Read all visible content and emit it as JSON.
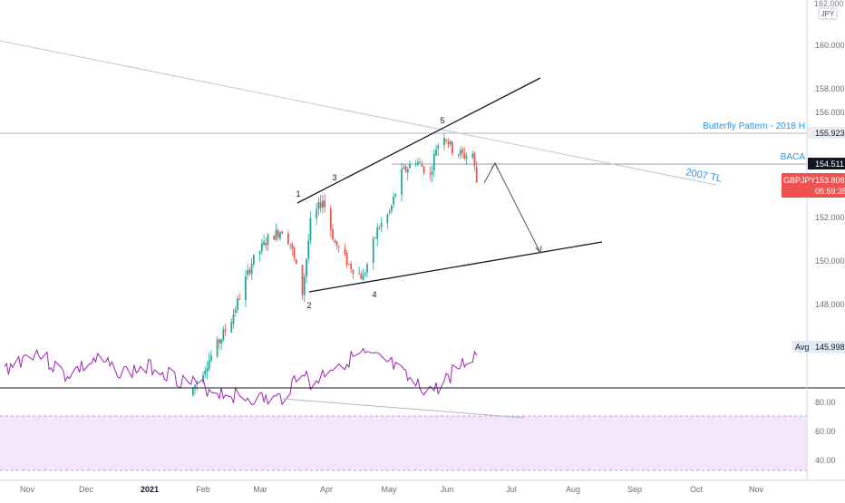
{
  "colors": {
    "bull": "#26a69a",
    "bear": "#ef5350",
    "rsi_line": "#9c27b0",
    "rsi_band": "#f3e5fc",
    "annot_blue": "#2196f3",
    "trend_line": "#b2b5be",
    "last_price_bg": "#ef5350",
    "current_label_bg": "#131722",
    "avg_bg": "#e3e9f7"
  },
  "price_scale": {
    "currency": "JPY",
    "ticks": [
      "160.000",
      "158.000",
      "156.000",
      "152.000",
      "150.000",
      "148.000"
    ],
    "top_partial": "162.000"
  },
  "price_labels": {
    "butterfly_value": "155.923",
    "baca_value": "154.511",
    "symbol": "GBPJPY",
    "last_price": "153.808",
    "countdown": "05:59:35",
    "avg_label": "Avg",
    "avg_value": "145.998"
  },
  "annotations": {
    "butterfly": "Butterfly Pattern - 2018 H",
    "baca": "BACA",
    "tl2007": "2007 TL",
    "waves": [
      "1",
      "2",
      "3",
      "4",
      "5"
    ]
  },
  "rsi_scale": {
    "ticks": [
      "80.00",
      "60.00",
      "40.00"
    ]
  },
  "time_axis": [
    "Nov",
    "Dec",
    "2021",
    "Feb",
    "Mar",
    "Apr",
    "May",
    "Jun",
    "Jul",
    "Aug",
    "Sep",
    "Oct",
    "Nov"
  ],
  "chart_data": [
    {
      "type": "line",
      "symbol": "GBPJPY",
      "currency": "JPY",
      "y_ticks": [
        148,
        150,
        152,
        156,
        158,
        160
      ],
      "ylim": [
        144.2,
        162.1
      ],
      "reference_levels": [
        {
          "label": "Butterfly Pattern - 2018 H",
          "value": 155.923
        },
        {
          "label": "BACA",
          "value": 154.511
        },
        {
          "label": "Avg",
          "value": 145.998
        }
      ],
      "last_price": 153.808,
      "series": [
        {
          "x": [
            "2021-01-27",
            "2021-02-05",
            "2021-02-15",
            "2021-02-25",
            "2021-03-05",
            "2021-03-12",
            "2021-03-16",
            "2021-03-22",
            "2021-03-26",
            "2021-04-01",
            "2021-04-07",
            "2021-04-14",
            "2021-04-21",
            "2021-04-28",
            "2021-05-04",
            "2021-05-10",
            "2021-05-17",
            "2021-05-24",
            "2021-05-27",
            "2021-05-31",
            "2021-06-04",
            "2021-06-10",
            "2021-06-14",
            "2021-06-16"
          ],
          "values": [
            144.3,
            145.8,
            147.5,
            150.1,
            151.2,
            151.6,
            151.0,
            148.7,
            151.9,
            153.0,
            151.0,
            150.0,
            149.4,
            151.6,
            152.4,
            154.2,
            154.8,
            154.1,
            155.4,
            156.0,
            155.3,
            155.0,
            155.1,
            153.8
          ]
        }
      ]
    },
    {
      "type": "line",
      "title": "RSI",
      "y_ticks": [
        40,
        60,
        80
      ],
      "ylim": [
        30,
        86
      ],
      "band": [
        30,
        70
      ],
      "series": [
        {
          "x": [
            "2020-10-26",
            "2020-11-10",
            "2020-11-25",
            "2020-12-10",
            "2020-12-24",
            "2021-01-08",
            "2021-01-22",
            "2021-02-05",
            "2021-02-20",
            "2021-03-05",
            "2021-03-12",
            "2021-03-22",
            "2021-03-26",
            "2021-04-05",
            "2021-04-20",
            "2021-05-04",
            "2021-05-17",
            "2021-05-27",
            "2021-06-04",
            "2021-06-16"
          ],
          "values": [
            58,
            45,
            62,
            52,
            60,
            56,
            66,
            72,
            77,
            79,
            78,
            57,
            70,
            56,
            48,
            54,
            70,
            72,
            60,
            47
          ]
        }
      ]
    }
  ]
}
